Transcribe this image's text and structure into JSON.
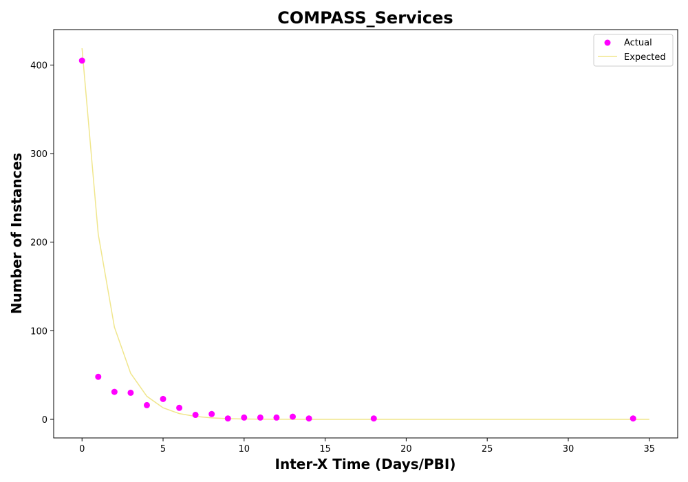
{
  "chart_data": {
    "type": "scatter",
    "title": "COMPASS_Services",
    "xlabel": "Inter-X Time (Days/PBI)",
    "ylabel": "Number of Instances",
    "xlim": [
      -1.75,
      36.75
    ],
    "ylim": [
      -21,
      440
    ],
    "xticks": [
      0,
      5,
      10,
      15,
      20,
      25,
      30,
      35
    ],
    "yticks": [
      0,
      100,
      200,
      300,
      400
    ],
    "grid": false,
    "legend_position": "top-right",
    "series": [
      {
        "name": "Actual",
        "kind": "scatter",
        "color": "#ff00ff",
        "x": [
          0,
          1,
          2,
          3,
          4,
          5,
          6,
          7,
          8,
          9,
          10,
          11,
          12,
          13,
          14,
          18,
          34
        ],
        "y": [
          405,
          48,
          31,
          30,
          16,
          23,
          13,
          5,
          6,
          1,
          2,
          2,
          2,
          3,
          1,
          1,
          1
        ]
      },
      {
        "name": "Expected",
        "kind": "line",
        "color": "#f0e68c",
        "x": [
          0,
          1,
          2,
          3,
          4,
          5,
          6,
          7,
          8,
          9,
          10,
          11,
          12,
          13,
          14,
          15,
          16,
          17,
          18,
          19,
          20,
          21,
          22,
          23,
          24,
          25,
          26,
          27,
          28,
          29,
          30,
          31,
          32,
          33,
          34,
          35
        ],
        "y": [
          419,
          209,
          104,
          52,
          26,
          13,
          6.5,
          3.3,
          1.6,
          0.8,
          0.4,
          0.2,
          0.1,
          0.05,
          0.03,
          0,
          0,
          0,
          0,
          0,
          0,
          0,
          0,
          0,
          0,
          0,
          0,
          0,
          0,
          0,
          0,
          0,
          0,
          0,
          0,
          0
        ]
      }
    ]
  }
}
